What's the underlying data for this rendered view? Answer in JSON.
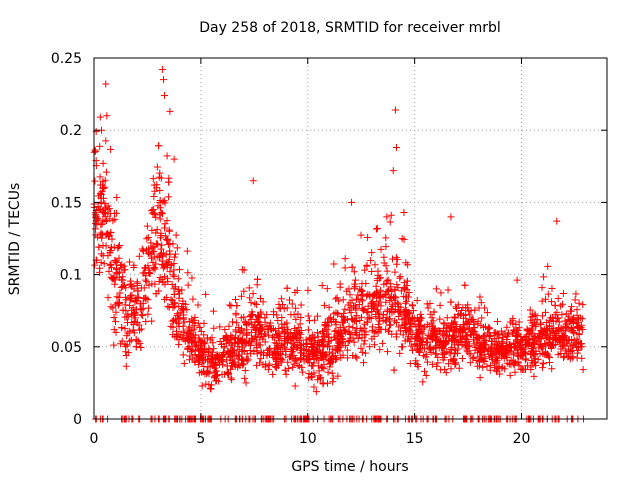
{
  "chart_data": {
    "type": "scatter",
    "title": "Day 258 of 2018, SRMTID for receiver mrbl",
    "xlabel": "GPS time / hours",
    "ylabel": "SRMTID / TECUs",
    "xlim": [
      0,
      24
    ],
    "ylim": [
      0,
      0.25
    ],
    "grid": true,
    "marker": "+",
    "marker_color": "#ff0000",
    "x_ticks": [
      0,
      5,
      10,
      15,
      20
    ],
    "x_tick_labels": [
      "0",
      "5",
      "10",
      "15",
      "20"
    ],
    "y_ticks": [
      0,
      0.05,
      0.1,
      0.15,
      0.2,
      0.25
    ],
    "y_tick_labels": [
      "0",
      "0.05",
      "0.1",
      "0.15",
      "0.2",
      "0.25"
    ],
    "time_range_hours": [
      0,
      22.9
    ],
    "trend": [
      {
        "x": 0.0,
        "y": 0.15
      },
      {
        "x": 0.5,
        "y": 0.14
      },
      {
        "x": 1.0,
        "y": 0.09
      },
      {
        "x": 1.5,
        "y": 0.075
      },
      {
        "x": 2.0,
        "y": 0.07
      },
      {
        "x": 2.5,
        "y": 0.1
      },
      {
        "x": 3.0,
        "y": 0.13
      },
      {
        "x": 3.5,
        "y": 0.11
      },
      {
        "x": 4.0,
        "y": 0.07
      },
      {
        "x": 4.5,
        "y": 0.055
      },
      {
        "x": 5.0,
        "y": 0.045
      },
      {
        "x": 5.5,
        "y": 0.038
      },
      {
        "x": 6.0,
        "y": 0.045
      },
      {
        "x": 6.5,
        "y": 0.05
      },
      {
        "x": 7.0,
        "y": 0.055
      },
      {
        "x": 7.5,
        "y": 0.06
      },
      {
        "x": 8.0,
        "y": 0.055
      },
      {
        "x": 8.5,
        "y": 0.052
      },
      {
        "x": 9.0,
        "y": 0.055
      },
      {
        "x": 9.5,
        "y": 0.055
      },
      {
        "x": 10.0,
        "y": 0.045
      },
      {
        "x": 10.5,
        "y": 0.045
      },
      {
        "x": 11.0,
        "y": 0.048
      },
      {
        "x": 11.5,
        "y": 0.06
      },
      {
        "x": 12.0,
        "y": 0.07
      },
      {
        "x": 12.5,
        "y": 0.075
      },
      {
        "x": 13.0,
        "y": 0.075
      },
      {
        "x": 13.5,
        "y": 0.08
      },
      {
        "x": 14.0,
        "y": 0.085
      },
      {
        "x": 14.5,
        "y": 0.075
      },
      {
        "x": 15.0,
        "y": 0.06
      },
      {
        "x": 15.5,
        "y": 0.058
      },
      {
        "x": 16.0,
        "y": 0.056
      },
      {
        "x": 16.5,
        "y": 0.056
      },
      {
        "x": 17.0,
        "y": 0.058
      },
      {
        "x": 17.5,
        "y": 0.06
      },
      {
        "x": 18.0,
        "y": 0.052
      },
      {
        "x": 18.5,
        "y": 0.048
      },
      {
        "x": 19.0,
        "y": 0.045
      },
      {
        "x": 19.5,
        "y": 0.048
      },
      {
        "x": 20.0,
        "y": 0.05
      },
      {
        "x": 20.5,
        "y": 0.05
      },
      {
        "x": 21.0,
        "y": 0.055
      },
      {
        "x": 21.5,
        "y": 0.058
      },
      {
        "x": 22.0,
        "y": 0.058
      },
      {
        "x": 22.5,
        "y": 0.06
      },
      {
        "x": 22.9,
        "y": 0.06
      }
    ],
    "spread": [
      {
        "x": 0.0,
        "s": 0.035
      },
      {
        "x": 1.0,
        "s": 0.03
      },
      {
        "x": 2.0,
        "s": 0.022
      },
      {
        "x": 3.0,
        "s": 0.045
      },
      {
        "x": 4.0,
        "s": 0.025
      },
      {
        "x": 5.0,
        "s": 0.014
      },
      {
        "x": 6.0,
        "s": 0.015
      },
      {
        "x": 7.5,
        "s": 0.02
      },
      {
        "x": 10.0,
        "s": 0.016
      },
      {
        "x": 12.0,
        "s": 0.022
      },
      {
        "x": 14.0,
        "s": 0.028
      },
      {
        "x": 15.0,
        "s": 0.02
      },
      {
        "x": 17.0,
        "s": 0.018
      },
      {
        "x": 19.0,
        "s": 0.012
      },
      {
        "x": 21.0,
        "s": 0.016
      },
      {
        "x": 22.9,
        "s": 0.017
      }
    ],
    "peaks": [
      {
        "x": 0.35,
        "y": 0.2
      },
      {
        "x": 0.55,
        "y": 0.232
      },
      {
        "x": 0.6,
        "y": 0.21
      },
      {
        "x": 3.2,
        "y": 0.242
      },
      {
        "x": 3.25,
        "y": 0.235
      },
      {
        "x": 3.3,
        "y": 0.224
      },
      {
        "x": 3.55,
        "y": 0.213
      },
      {
        "x": 3.75,
        "y": 0.18
      },
      {
        "x": 7.45,
        "y": 0.165
      },
      {
        "x": 12.05,
        "y": 0.15
      },
      {
        "x": 13.7,
        "y": 0.14
      },
      {
        "x": 14.0,
        "y": 0.172
      },
      {
        "x": 14.1,
        "y": 0.214
      },
      {
        "x": 14.15,
        "y": 0.188
      },
      {
        "x": 14.5,
        "y": 0.143
      },
      {
        "x": 16.7,
        "y": 0.14
      },
      {
        "x": 21.65,
        "y": 0.137
      }
    ],
    "point_count": 2600,
    "zero_points_count": 230,
    "zero_points_note": "Occasional points plotted at y = 0 across the time range"
  }
}
